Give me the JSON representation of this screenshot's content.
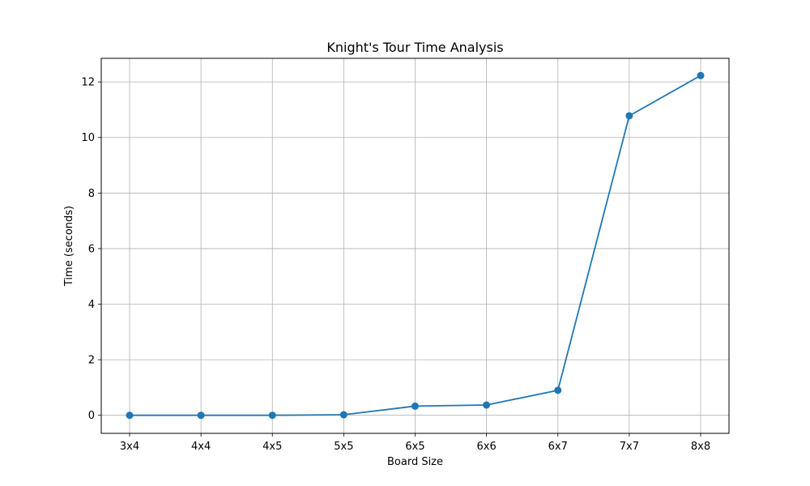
{
  "chart_data": {
    "type": "line",
    "title": "Knight's Tour Time Analysis",
    "xlabel": "Board Size",
    "ylabel": "Time (seconds)",
    "categories": [
      "3x4",
      "4x4",
      "4x5",
      "5x5",
      "6x5",
      "6x6",
      "6x7",
      "7x7",
      "8x8"
    ],
    "values": [
      0.0,
      0.0,
      0.0,
      0.02,
      0.33,
      0.37,
      0.9,
      10.78,
      12.23
    ],
    "ylim": [
      -0.65,
      12.85
    ],
    "yticks": [
      0,
      2,
      4,
      6,
      8,
      10,
      12
    ],
    "grid": true,
    "line_color": "#1f77b4",
    "marker": "circle"
  }
}
